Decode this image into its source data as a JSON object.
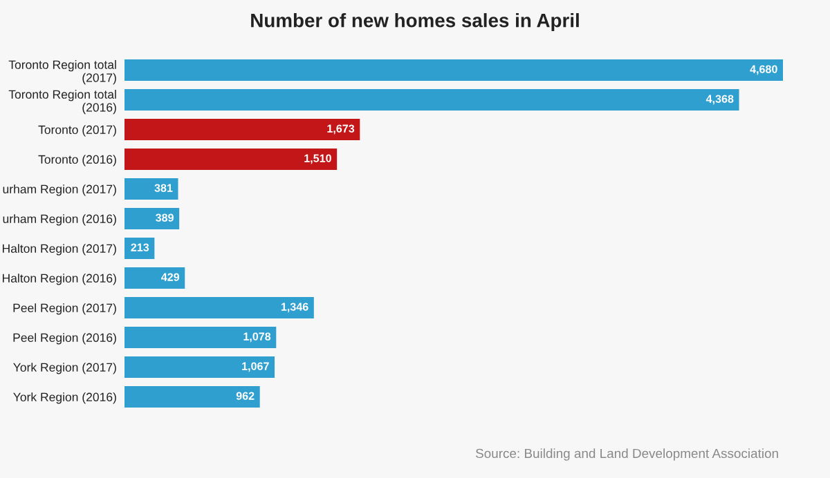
{
  "chart_data": {
    "type": "bar",
    "orientation": "horizontal",
    "title": "Number of new homes sales in April",
    "categories": [
      "Toronto Region total\n(2017)",
      "Toronto Region total\n(2016)",
      "Toronto (2017)",
      "Toronto (2016)",
      "urham Region (2017)",
      "urham Region (2016)",
      "Halton Region (2017)",
      "Halton Region (2016)",
      "Peel Region (2017)",
      "Peel Region (2016)",
      "York Region (2017)",
      "York Region (2016)"
    ],
    "values": [
      4680,
      4368,
      1673,
      1510,
      381,
      389,
      213,
      429,
      1346,
      1078,
      1067,
      962
    ],
    "colors": [
      "#2e9fcf",
      "#2e9fcf",
      "#c21618",
      "#c21618",
      "#2e9fcf",
      "#2e9fcf",
      "#2e9fcf",
      "#2e9fcf",
      "#2e9fcf",
      "#2e9fcf",
      "#2e9fcf",
      "#2e9fcf"
    ],
    "value_labels": [
      "4,680",
      "4,368",
      "1,673",
      "1,510",
      "381",
      "389",
      "213",
      "429",
      "1,346",
      "1,078",
      "1,067",
      "962"
    ],
    "annotations": [
      "Source: Building and Land Development Association"
    ],
    "grid": false,
    "legend": false
  }
}
